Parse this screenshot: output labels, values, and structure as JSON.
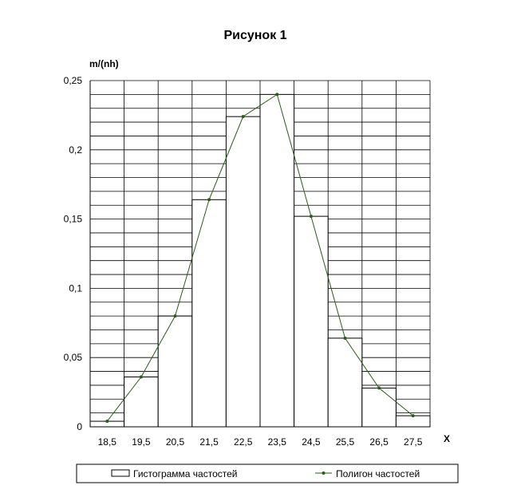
{
  "chart_data": {
    "type": "bar",
    "title": "Рисунок 1",
    "ylabel": "m/(nh)",
    "xlabel": "X",
    "ylim": [
      0,
      0.25
    ],
    "y_ticks": [
      0,
      0.05,
      0.1,
      0.15,
      0.2,
      0.25
    ],
    "y_tick_labels": [
      "0",
      "0,05",
      "0,1",
      "0,15",
      "0,2",
      "0,25"
    ],
    "categories": [
      "18,5",
      "19,5",
      "20,5",
      "21,5",
      "22,5",
      "23,5",
      "24,5",
      "25,5",
      "26,5",
      "27,5"
    ],
    "x": [
      18.5,
      19.5,
      20.5,
      21.5,
      22.5,
      23.5,
      24.5,
      25.5,
      26.5,
      27.5
    ],
    "grid": true,
    "legend_position": "bottom",
    "series": [
      {
        "name": "Гистограмма частостей",
        "type": "bar",
        "values": [
          0.004,
          0.036,
          0.08,
          0.164,
          0.224,
          0.24,
          0.152,
          0.064,
          0.028,
          0.008
        ]
      },
      {
        "name": "Полигон частостей",
        "type": "line",
        "values": [
          0.004,
          0.036,
          0.08,
          0.164,
          0.224,
          0.24,
          0.152,
          0.064,
          0.028,
          0.008
        ]
      }
    ],
    "colors": {
      "bar_fill": "#ffffff",
      "bar_stroke": "#000000",
      "line": "#2e5a1c",
      "marker": "#2e5a1c",
      "grid": "#000000"
    }
  }
}
